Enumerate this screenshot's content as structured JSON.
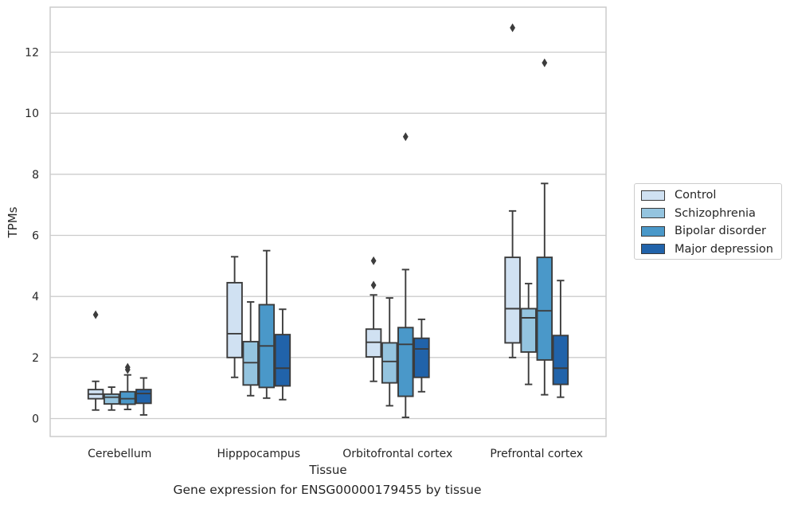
{
  "chart_data": {
    "type": "boxplot",
    "caption": "Gene expression for ENSG00000179455 by tissue",
    "xlabel": "Tissue",
    "ylabel": "TPMs",
    "ylim": [
      -0.6,
      13.5
    ],
    "yticks": [
      0,
      2,
      4,
      6,
      8,
      10,
      12
    ],
    "grid": "horizontal",
    "legend_position": "right",
    "categories": [
      "Cerebellum",
      "Hipppocampus",
      "Orbitofrontal cortex",
      "Prefrontal cortex"
    ],
    "series": [
      {
        "name": "Control",
        "color": "#d0e1f2",
        "boxes": [
          {
            "whislo": 0.28,
            "q1": 0.65,
            "med": 0.8,
            "q3": 0.95,
            "whishi": 1.22,
            "fliers": [
              3.4
            ]
          },
          {
            "whislo": 1.35,
            "q1": 2.0,
            "med": 2.78,
            "q3": 4.45,
            "whishi": 5.3,
            "fliers": []
          },
          {
            "whislo": 1.22,
            "q1": 2.02,
            "med": 2.5,
            "q3": 2.93,
            "whishi": 4.05,
            "fliers": [
              4.37,
              5.17
            ]
          },
          {
            "whislo": 2.0,
            "q1": 2.48,
            "med": 3.6,
            "q3": 5.28,
            "whishi": 6.8,
            "fliers": [
              12.8
            ]
          }
        ]
      },
      {
        "name": "Schizophrenia",
        "color": "#94c4df",
        "boxes": [
          {
            "whislo": 0.28,
            "q1": 0.48,
            "med": 0.7,
            "q3": 0.8,
            "whishi": 1.03,
            "fliers": []
          },
          {
            "whislo": 0.75,
            "q1": 1.1,
            "med": 1.83,
            "q3": 2.52,
            "whishi": 3.82,
            "fliers": []
          },
          {
            "whislo": 0.42,
            "q1": 1.17,
            "med": 1.87,
            "q3": 2.48,
            "whishi": 3.95,
            "fliers": []
          },
          {
            "whislo": 1.12,
            "q1": 2.18,
            "med": 3.3,
            "q3": 3.6,
            "whishi": 4.42,
            "fliers": []
          }
        ]
      },
      {
        "name": "Bipolar disorder",
        "color": "#4a98c9",
        "boxes": [
          {
            "whislo": 0.3,
            "q1": 0.47,
            "med": 0.65,
            "q3": 0.88,
            "whishi": 1.43,
            "fliers": [
              1.6,
              1.68
            ]
          },
          {
            "whislo": 0.67,
            "q1": 1.02,
            "med": 2.38,
            "q3": 3.73,
            "whishi": 5.5,
            "fliers": []
          },
          {
            "whislo": 0.04,
            "q1": 0.73,
            "med": 2.43,
            "q3": 2.98,
            "whishi": 4.88,
            "fliers": [
              9.23
            ]
          },
          {
            "whislo": 0.78,
            "q1": 1.92,
            "med": 3.53,
            "q3": 5.28,
            "whishi": 7.7,
            "fliers": [
              11.65
            ]
          }
        ]
      },
      {
        "name": "Major depression",
        "color": "#2163aa",
        "boxes": [
          {
            "whislo": 0.12,
            "q1": 0.5,
            "med": 0.82,
            "q3": 0.95,
            "whishi": 1.33,
            "fliers": []
          },
          {
            "whislo": 0.62,
            "q1": 1.07,
            "med": 1.65,
            "q3": 2.75,
            "whishi": 3.58,
            "fliers": []
          },
          {
            "whislo": 0.88,
            "q1": 1.35,
            "med": 2.28,
            "q3": 2.63,
            "whishi": 3.25,
            "fliers": []
          },
          {
            "whislo": 0.7,
            "q1": 1.12,
            "med": 1.65,
            "q3": 2.72,
            "whishi": 4.52,
            "fliers": []
          }
        ]
      }
    ]
  }
}
